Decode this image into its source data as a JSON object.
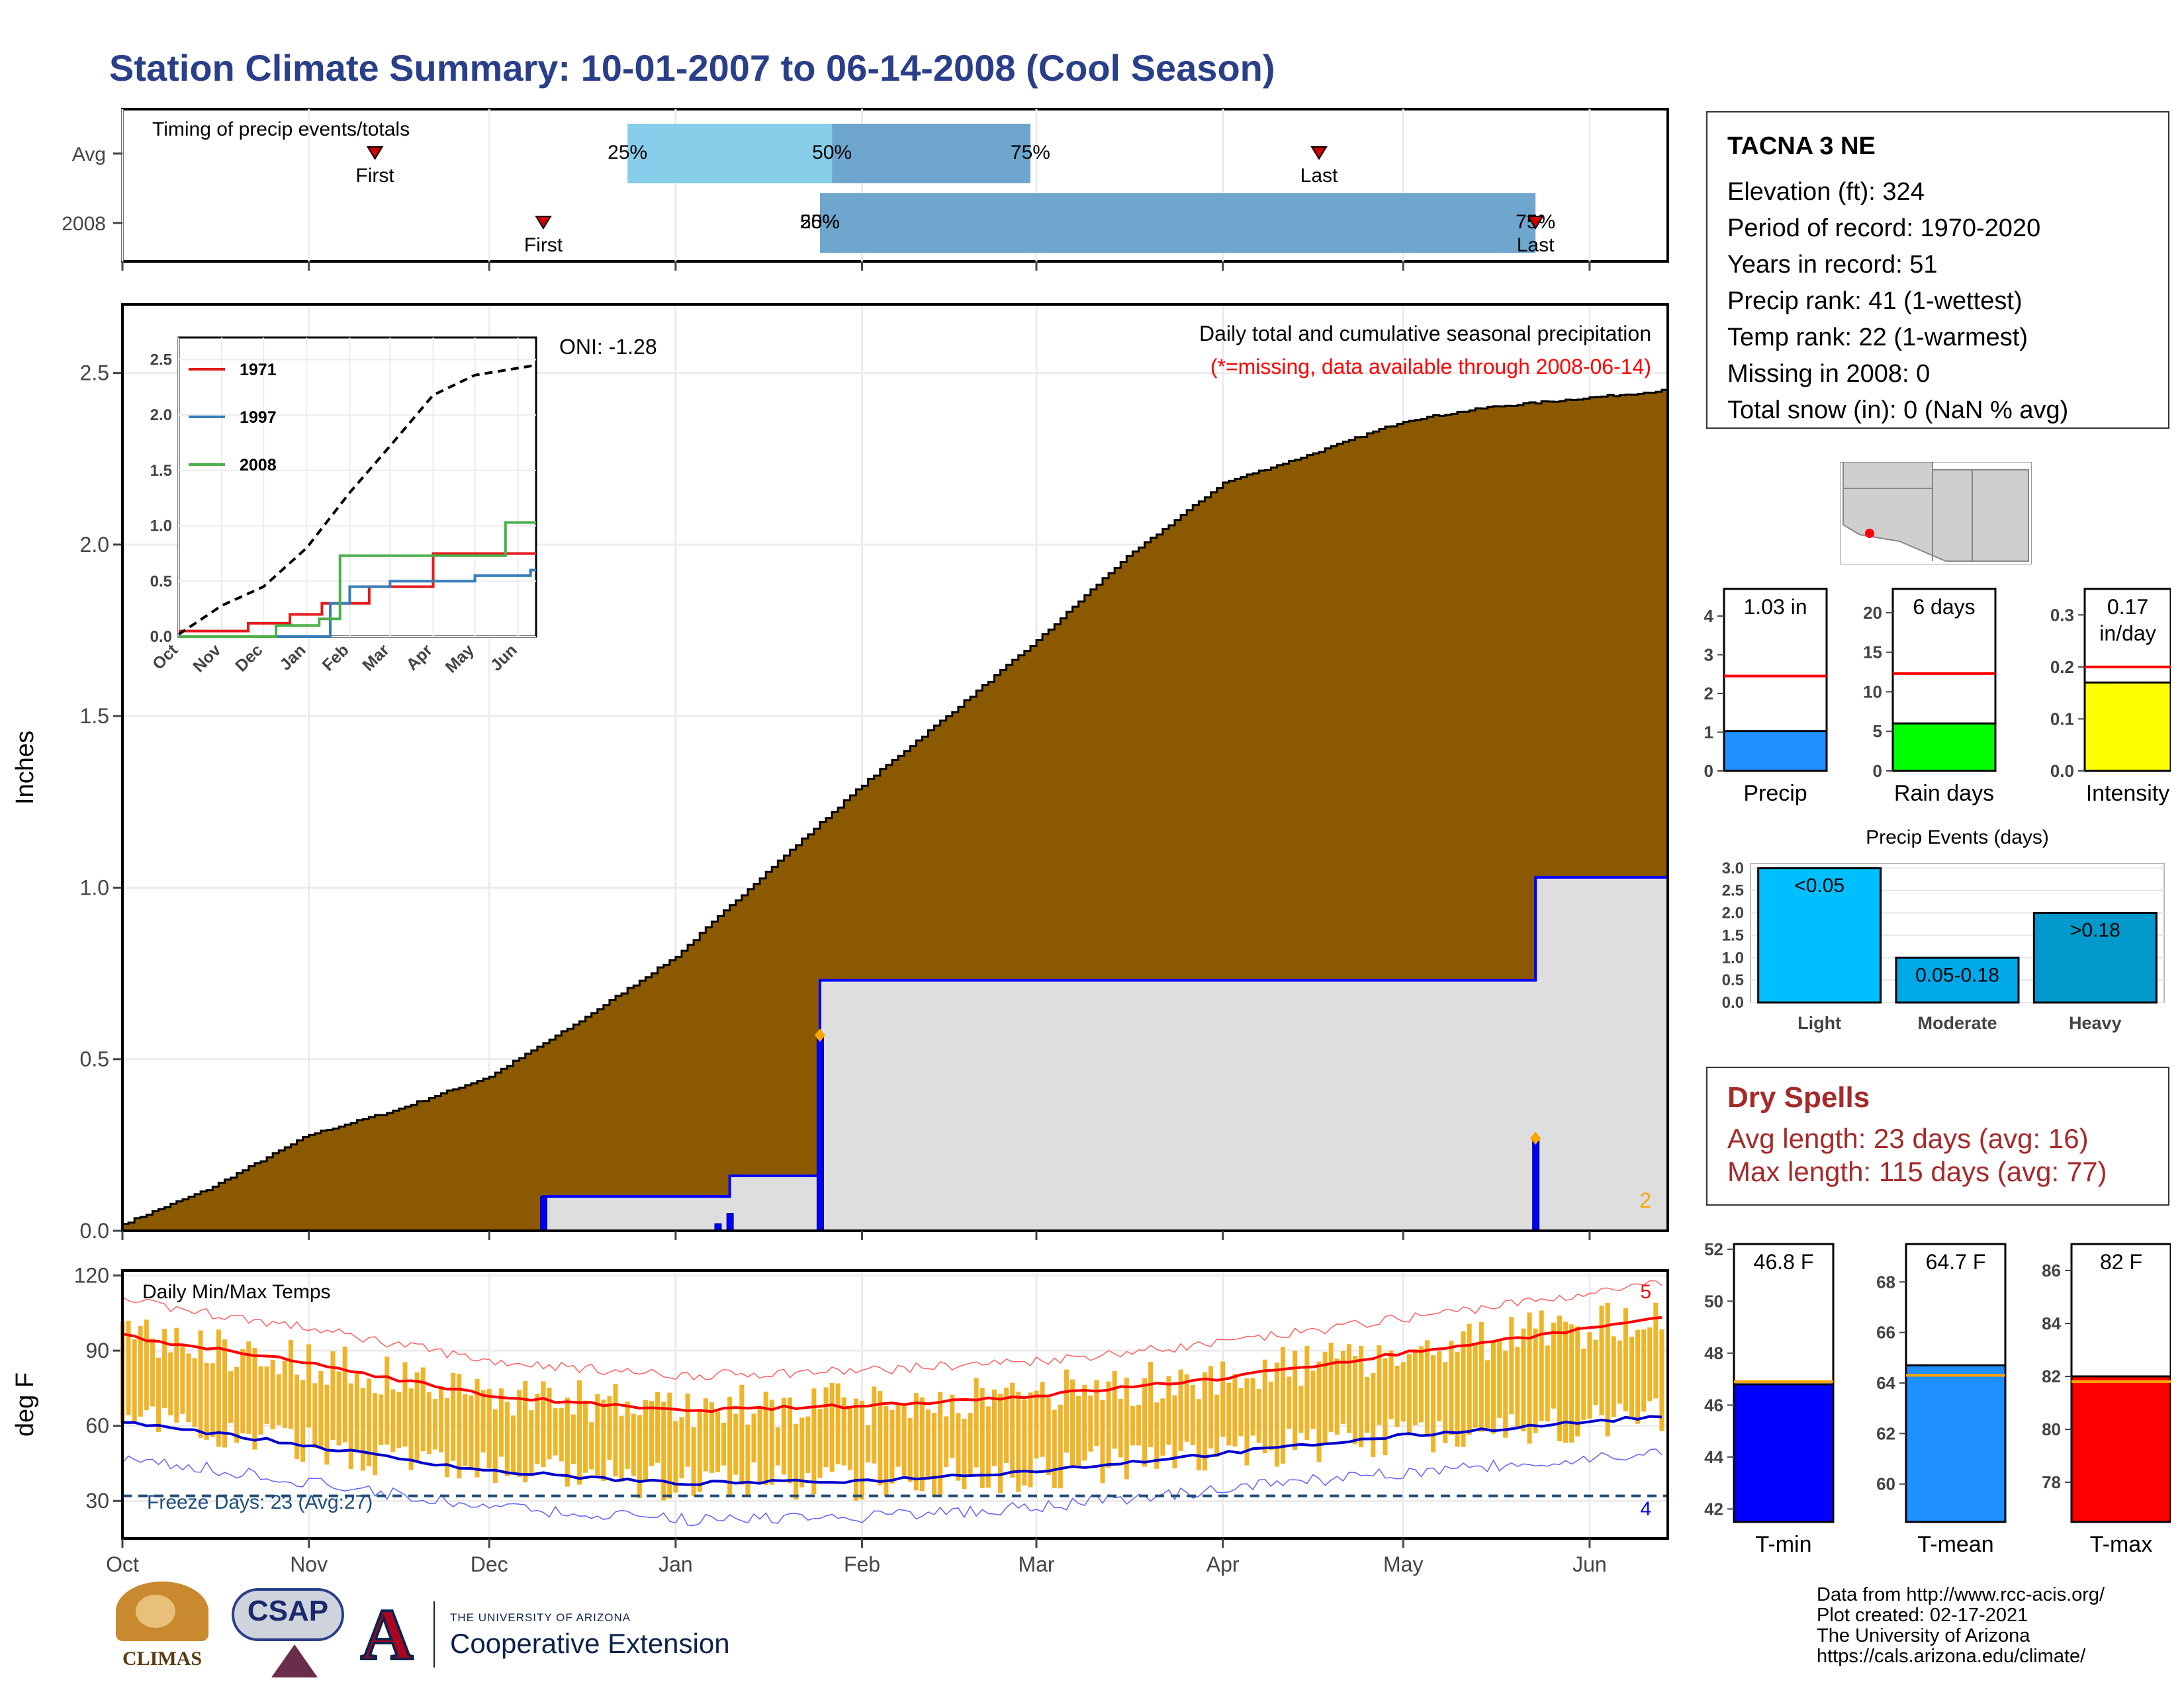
{
  "title": "Station Climate Summary: 10-01-2007 to 06-14-2008 (Cool Season)",
  "months": [
    "Oct",
    "Nov",
    "Dec",
    "Jan",
    "Feb",
    "Mar",
    "Apr",
    "May",
    "Jun"
  ],
  "station": {
    "name": "TACNA 3 NE",
    "lines": [
      "Elevation (ft): 324",
      "Period of record: 1970-2020",
      "Years in record: 51",
      "Precip rank: 41 (1-wettest)",
      "Temp rank: 22 (1-warmest)",
      "Missing in 2008: 0",
      "Total snow (in): 0 (NaN % avg)"
    ]
  },
  "dry_spells": {
    "title": "Dry Spells",
    "avg": "Avg length: 23 days (avg: 16)",
    "max": "Max length: 115 days (avg: 77)"
  },
  "credits": [
    "Data from http://www.rcc-acis.org/",
    "Plot created: 02-17-2021",
    "The University of Arizona",
    "https://cals.arizona.edu/climate/"
  ],
  "logos": {
    "climas": "CLIMAS",
    "csap": "CSAP",
    "ua_small": "THE UNIVERSITY OF ARIZONA",
    "ua_big": "Cooperative Extension"
  },
  "colors": {
    "title": "#2a3f8a",
    "cum_avg": "#8b5a00",
    "cum_obs": "#dedede",
    "obs_line": "#0000ff",
    "temp_bars": "#f0b429",
    "tmax_line": "#ff0000",
    "tmin_line": "#0000cc",
    "dry_spells": "#a52a2a",
    "freeze": "#1f4e79",
    "missing_note": "#ff0000"
  },
  "chart_data": [
    {
      "type": "bar",
      "title": "Timing of precip events/totals",
      "categories": [
        "Avg",
        "2008"
      ],
      "x_axis": "date (Oct 1 to Jun 14)",
      "rows": [
        {
          "name": "Avg",
          "q25": "Dec-24",
          "q50": "Jan-27",
          "q75": "Feb-29",
          "first": "Nov-12",
          "last": "Apr-17"
        },
        {
          "name": "2008",
          "q25": "Jan-25",
          "q50": "Jan-25",
          "q75": "May-23",
          "first": "Dec-10",
          "last": "May-23"
        }
      ],
      "labels": {
        "first": "First",
        "last": "Last",
        "q25": "25%",
        "q50": "50%",
        "q75": "75%"
      }
    },
    {
      "type": "area",
      "title": "Daily total and cumulative seasonal precipitation",
      "subtitle": "(*=missing, data available through 2008-06-14)",
      "ylabel": "Inches",
      "ylim": [
        0,
        2.7
      ],
      "yticks": [
        0.0,
        0.5,
        1.0,
        1.5,
        2.0,
        2.5
      ],
      "oni": "ONI: -1.28",
      "corner_count": "2",
      "avg_cumulative_monthly": {
        "dates": [
          "Oct-01",
          "Oct-15",
          "Nov-01",
          "Nov-15",
          "Dec-01",
          "Dec-15",
          "Jan-01",
          "Jan-15",
          "Feb-01",
          "Feb-15",
          "Mar-01",
          "Mar-15",
          "Apr-01",
          "Apr-15",
          "May-01",
          "May-15",
          "Jun-14"
        ],
        "values": [
          0.02,
          0.12,
          0.28,
          0.35,
          0.45,
          0.6,
          0.8,
          1.03,
          1.3,
          1.5,
          1.72,
          1.95,
          2.18,
          2.26,
          2.36,
          2.4,
          2.45
        ]
      },
      "obs_cumulative": {
        "dates": [
          "Oct-01",
          "Dec-10",
          "Jan-10",
          "Jan-25",
          "May-21",
          "May-23",
          "Jun-14"
        ],
        "values": [
          0,
          0.1,
          0.16,
          0.73,
          0.73,
          1.03,
          1.03
        ]
      },
      "daily_events": [
        {
          "date": "Dec-10",
          "value": 0.1
        },
        {
          "date": "Jan-08",
          "value": 0.02
        },
        {
          "date": "Jan-10",
          "value": 0.05
        },
        {
          "date": "Jan-25",
          "value": 0.57
        },
        {
          "date": "May-23",
          "value": 0.27
        }
      ]
    },
    {
      "type": "line",
      "title": "",
      "inset": true,
      "ylim": [
        0,
        2.7
      ],
      "yticks": [
        0.0,
        0.5,
        1.0,
        1.5,
        2.0,
        2.5
      ],
      "series": [
        {
          "name": "1971",
          "dates": [
            "Oct-01",
            "Nov-20",
            "Dec-20",
            "Jan-12",
            "Feb-15",
            "Apr-01",
            "Jun-14"
          ],
          "values": [
            0.05,
            0.12,
            0.2,
            0.3,
            0.45,
            0.75,
            0.75
          ]
        },
        {
          "name": "1997",
          "dates": [
            "Oct-01",
            "Jan-18",
            "Feb-01",
            "Mar-01",
            "May-01",
            "Jun-10"
          ],
          "values": [
            0.0,
            0.3,
            0.45,
            0.5,
            0.55,
            0.6
          ]
        },
        {
          "name": "2008",
          "dates": [
            "Oct-01",
            "Dec-10",
            "Jan-10",
            "Jan-25",
            "May-21",
            "May-23",
            "Jun-14"
          ],
          "values": [
            0.0,
            0.1,
            0.16,
            0.73,
            0.73,
            1.03,
            1.03
          ]
        },
        {
          "name": "Avg",
          "dates": [
            "Oct-01",
            "Nov-01",
            "Dec-01",
            "Jan-01",
            "Feb-01",
            "Mar-01",
            "Apr-01",
            "May-01",
            "Jun-14"
          ],
          "values": [
            0.02,
            0.28,
            0.45,
            0.8,
            1.3,
            1.72,
            2.18,
            2.36,
            2.45
          ]
        }
      ]
    },
    {
      "type": "bar",
      "title": "Daily Min/Max Temps",
      "ylabel": "deg F",
      "ylim": [
        15,
        122
      ],
      "yticks": [
        30,
        60,
        90,
        120
      ],
      "freeze_line": 32,
      "freeze_label": "Freeze Days: 23 (Avg:27)",
      "record_high_count": "5",
      "record_low_count": "4",
      "avg_tmax": {
        "dates": [
          "Oct-01",
          "Nov-01",
          "Dec-01",
          "Jan-01",
          "Feb-01",
          "Mar-01",
          "Apr-01",
          "May-01",
          "Jun-14"
        ],
        "values": [
          96,
          85,
          72,
          66,
          68,
          72,
          79,
          89,
          103
        ]
      },
      "avg_tmin": {
        "dates": [
          "Oct-01",
          "Nov-01",
          "Dec-01",
          "Jan-01",
          "Feb-01",
          "Mar-01",
          "Apr-01",
          "May-01",
          "Jun-14"
        ],
        "values": [
          62,
          52,
          42,
          37,
          38,
          42,
          49,
          56,
          64
        ]
      }
    },
    {
      "type": "bar",
      "title": "",
      "panels": [
        {
          "name": "Precip",
          "value": 1.03,
          "avg": 2.45,
          "label": "1.03 in",
          "ylim": [
            0,
            4.7
          ],
          "yticks": [
            0,
            1,
            2,
            3,
            4
          ],
          "color": "#1e90ff"
        },
        {
          "name": "Rain days",
          "value": 6,
          "avg": 12.3,
          "label": "6 days",
          "ylim": [
            0,
            23
          ],
          "yticks": [
            0,
            5,
            10,
            15,
            20
          ],
          "color": "#00ff00"
        },
        {
          "name": "Intensity",
          "value": 0.17,
          "avg": 0.2,
          "label": "0.17\nin/day",
          "ylim": [
            0,
            0.35
          ],
          "yticks": [
            0.0,
            0.1,
            0.2,
            0.3
          ],
          "color": "#ffff00"
        }
      ]
    },
    {
      "type": "bar",
      "title": "Precip Events (days)",
      "categories": [
        "Light",
        "Moderate",
        "Heavy"
      ],
      "bar_labels": [
        "<0.05",
        "0.05-0.18",
        ">0.18"
      ],
      "values": [
        3,
        1,
        2
      ],
      "ylim": [
        0,
        3.1
      ],
      "yticks": [
        0.0,
        0.5,
        1.0,
        1.5,
        2.0,
        2.5,
        3.0
      ],
      "colors": [
        "#00bfff",
        "#00a8e8",
        "#0099cc"
      ]
    },
    {
      "type": "bar",
      "title": "",
      "panels": [
        {
          "name": "T-min",
          "value": 46.8,
          "avg": 46.9,
          "label": "46.8 F",
          "ylim": [
            41.5,
            52.2
          ],
          "yticks": [
            42,
            44,
            46,
            48,
            50,
            52
          ],
          "color": "#0000ff"
        },
        {
          "name": "T-mean",
          "value": 64.7,
          "avg": 64.3,
          "label": "64.7 F",
          "ylim": [
            58.5,
            69.5
          ],
          "yticks": [
            60,
            62,
            64,
            66,
            68
          ],
          "color": "#1e90ff"
        },
        {
          "name": "T-max",
          "value": 82,
          "avg": 81.8,
          "label": "82 F",
          "ylim": [
            76.5,
            87
          ],
          "yticks": [
            78,
            80,
            82,
            84,
            86
          ],
          "color": "#ff0000"
        }
      ]
    }
  ]
}
